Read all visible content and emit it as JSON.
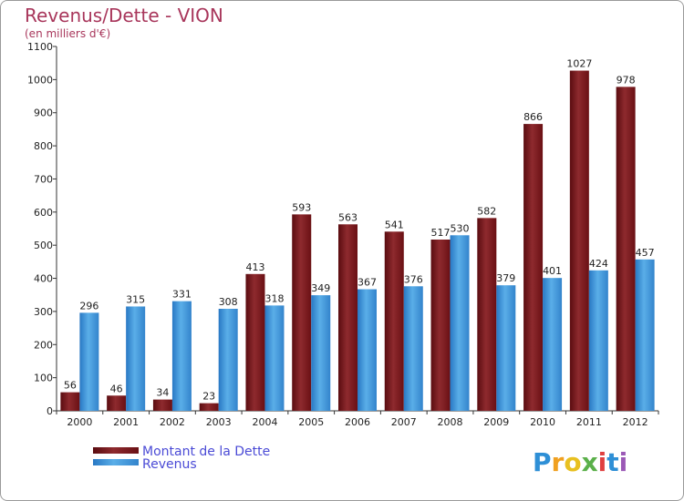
{
  "chart_data": {
    "type": "bar",
    "title": "Revenus/Dette - VION",
    "subtitle": "(en milliers d'€)",
    "categories": [
      "2000",
      "2001",
      "2002",
      "2003",
      "2004",
      "2005",
      "2006",
      "2007",
      "2008",
      "2009",
      "2010",
      "2011",
      "2012"
    ],
    "series": [
      {
        "name": "Montant de la Dette",
        "color": "#7a1418",
        "values": [
          56,
          46,
          34,
          23,
          413,
          593,
          563,
          541,
          517,
          582,
          866,
          1027,
          978
        ]
      },
      {
        "name": "Revenus",
        "color": "#3b8fd8",
        "values": [
          296,
          315,
          331,
          308,
          318,
          349,
          367,
          376,
          530,
          379,
          401,
          424,
          457
        ]
      }
    ],
    "ylim": [
      0,
      1100
    ],
    "yticks": [
      0,
      100,
      200,
      300,
      400,
      500,
      600,
      700,
      800,
      900,
      1000,
      1100
    ],
    "grid": false,
    "legend_position": "bottom-left"
  },
  "logo": {
    "letters": [
      "P",
      "r",
      "o",
      "x",
      "i",
      "t",
      "i"
    ],
    "colors": [
      "#2e8fd6",
      "#f0a020",
      "#e8c020",
      "#5bb04a",
      "#e04040",
      "#2e8fd6",
      "#9b59b6"
    ]
  }
}
